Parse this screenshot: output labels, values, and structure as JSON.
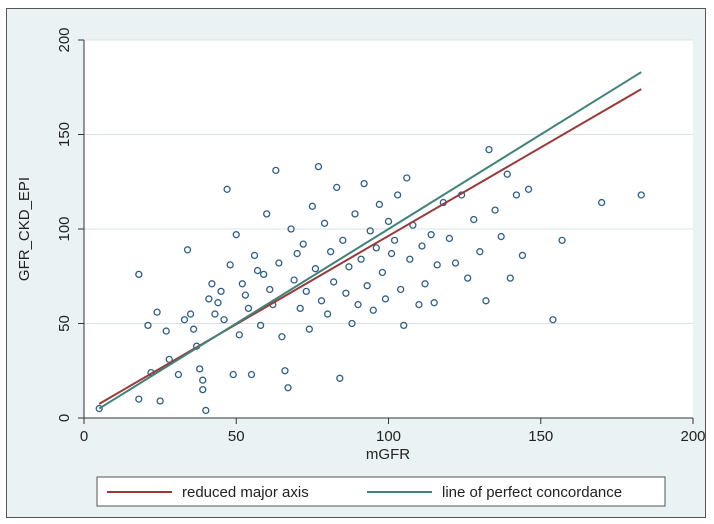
{
  "chart_data": {
    "type": "scatter",
    "xlabel": "mGFR",
    "ylabel": "GFR_CKD_EPI",
    "xlim": [
      0,
      200
    ],
    "ylim": [
      0,
      200
    ],
    "xticks": [
      0,
      50,
      100,
      150,
      200
    ],
    "yticks": [
      0,
      50,
      100,
      150,
      200
    ],
    "grid": "horizontal",
    "legend_position": "bottom",
    "colors": {
      "points": "#2e5f8a",
      "rma_line": "#9b3a3a",
      "concordance_line": "#3f8379",
      "plot_background": "#ffffff",
      "outer_background": "#eaf2f3",
      "grid": "#d8e3e6"
    },
    "series": [
      {
        "name": "",
        "kind": "points",
        "points": [
          [
            5,
            5
          ],
          [
            18,
            76
          ],
          [
            18,
            10
          ],
          [
            21,
            49
          ],
          [
            22,
            24
          ],
          [
            24,
            56
          ],
          [
            25,
            9
          ],
          [
            27,
            46
          ],
          [
            28,
            31
          ],
          [
            31,
            23
          ],
          [
            33,
            52
          ],
          [
            34,
            89
          ],
          [
            35,
            55
          ],
          [
            36,
            47
          ],
          [
            37,
            38
          ],
          [
            38,
            26
          ],
          [
            39,
            20
          ],
          [
            39,
            15
          ],
          [
            40,
            4
          ],
          [
            41,
            63
          ],
          [
            42,
            71
          ],
          [
            43,
            55
          ],
          [
            44,
            61
          ],
          [
            45,
            67
          ],
          [
            46,
            52
          ],
          [
            47,
            121
          ],
          [
            48,
            81
          ],
          [
            49,
            23
          ],
          [
            50,
            97
          ],
          [
            51,
            44
          ],
          [
            52,
            71
          ],
          [
            53,
            65
          ],
          [
            54,
            58
          ],
          [
            55,
            23
          ],
          [
            56,
            86
          ],
          [
            57,
            78
          ],
          [
            58,
            49
          ],
          [
            59,
            76
          ],
          [
            60,
            108
          ],
          [
            61,
            68
          ],
          [
            62,
            60
          ],
          [
            63,
            131
          ],
          [
            64,
            82
          ],
          [
            65,
            43
          ],
          [
            66,
            25
          ],
          [
            67,
            16
          ],
          [
            68,
            100
          ],
          [
            69,
            73
          ],
          [
            70,
            87
          ],
          [
            71,
            58
          ],
          [
            72,
            92
          ],
          [
            73,
            67
          ],
          [
            74,
            47
          ],
          [
            75,
            112
          ],
          [
            76,
            79
          ],
          [
            77,
            133
          ],
          [
            78,
            62
          ],
          [
            79,
            103
          ],
          [
            80,
            55
          ],
          [
            81,
            88
          ],
          [
            82,
            72
          ],
          [
            83,
            122
          ],
          [
            84,
            21
          ],
          [
            85,
            94
          ],
          [
            86,
            66
          ],
          [
            87,
            80
          ],
          [
            88,
            50
          ],
          [
            89,
            108
          ],
          [
            90,
            60
          ],
          [
            91,
            84
          ],
          [
            92,
            124
          ],
          [
            93,
            70
          ],
          [
            94,
            99
          ],
          [
            95,
            57
          ],
          [
            96,
            90
          ],
          [
            97,
            113
          ],
          [
            98,
            77
          ],
          [
            99,
            63
          ],
          [
            100,
            104
          ],
          [
            101,
            87
          ],
          [
            102,
            94
          ],
          [
            103,
            118
          ],
          [
            104,
            68
          ],
          [
            105,
            49
          ],
          [
            106,
            127
          ],
          [
            107,
            84
          ],
          [
            108,
            102
          ],
          [
            110,
            60
          ],
          [
            111,
            91
          ],
          [
            112,
            71
          ],
          [
            114,
            97
          ],
          [
            115,
            61
          ],
          [
            116,
            81
          ],
          [
            118,
            114
          ],
          [
            120,
            95
          ],
          [
            122,
            82
          ],
          [
            124,
            118
          ],
          [
            126,
            74
          ],
          [
            128,
            105
          ],
          [
            130,
            88
          ],
          [
            132,
            62
          ],
          [
            133,
            142
          ],
          [
            135,
            110
          ],
          [
            137,
            96
          ],
          [
            139,
            129
          ],
          [
            140,
            74
          ],
          [
            142,
            118
          ],
          [
            144,
            86
          ],
          [
            146,
            121
          ],
          [
            154,
            52
          ],
          [
            157,
            94
          ],
          [
            170,
            114
          ],
          [
            183,
            118
          ]
        ]
      },
      {
        "name": "reduced major axis",
        "kind": "line",
        "points": [
          [
            5,
            7.5
          ],
          [
            183,
            174
          ]
        ]
      },
      {
        "name": "line of perfect concordance",
        "kind": "line",
        "points": [
          [
            5,
            5
          ],
          [
            183,
            183
          ]
        ]
      }
    ]
  }
}
